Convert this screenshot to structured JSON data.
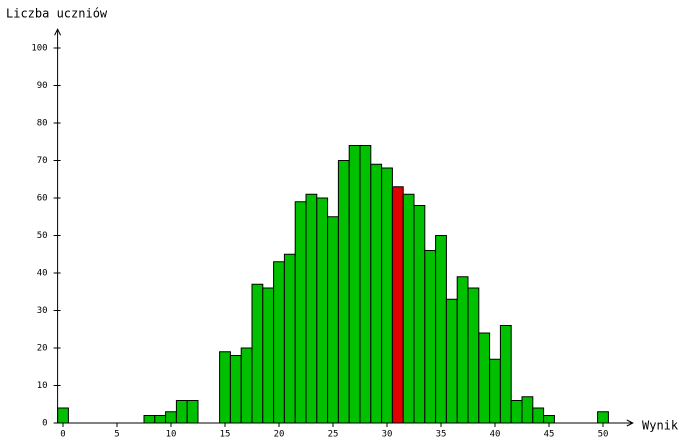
{
  "chart_data": {
    "type": "bar",
    "y_label": "Liczba uczniów",
    "x_label": "Wynik",
    "x": [
      0,
      1,
      2,
      3,
      4,
      5,
      6,
      7,
      8,
      9,
      10,
      11,
      12,
      13,
      14,
      15,
      16,
      17,
      18,
      19,
      20,
      21,
      22,
      23,
      24,
      25,
      26,
      27,
      28,
      29,
      30,
      31,
      32,
      33,
      34,
      35,
      36,
      37,
      38,
      39,
      40,
      41,
      42,
      43,
      44,
      45,
      46,
      47,
      48,
      49,
      50
    ],
    "values": [
      4,
      0,
      0,
      0,
      0,
      0,
      0,
      0,
      2,
      2,
      3,
      6,
      6,
      0,
      0,
      19,
      18,
      20,
      37,
      36,
      43,
      45,
      59,
      61,
      60,
      55,
      70,
      74,
      74,
      69,
      68,
      63,
      61,
      58,
      46,
      50,
      33,
      39,
      36,
      24,
      17,
      26,
      6,
      7,
      4,
      2,
      0,
      0,
      0,
      0,
      3
    ],
    "color": "#00c000",
    "highlight_x": 31,
    "highlight_color": "#e00000",
    "xlim": [
      -0.5,
      53.5
    ],
    "xticks": [
      0,
      5,
      10,
      15,
      20,
      25,
      30,
      35,
      40,
      45,
      50
    ],
    "ylim": [
      0,
      105
    ],
    "yticks": [
      0,
      10,
      20,
      30,
      40,
      50,
      60,
      70,
      80,
      90,
      100
    ]
  }
}
